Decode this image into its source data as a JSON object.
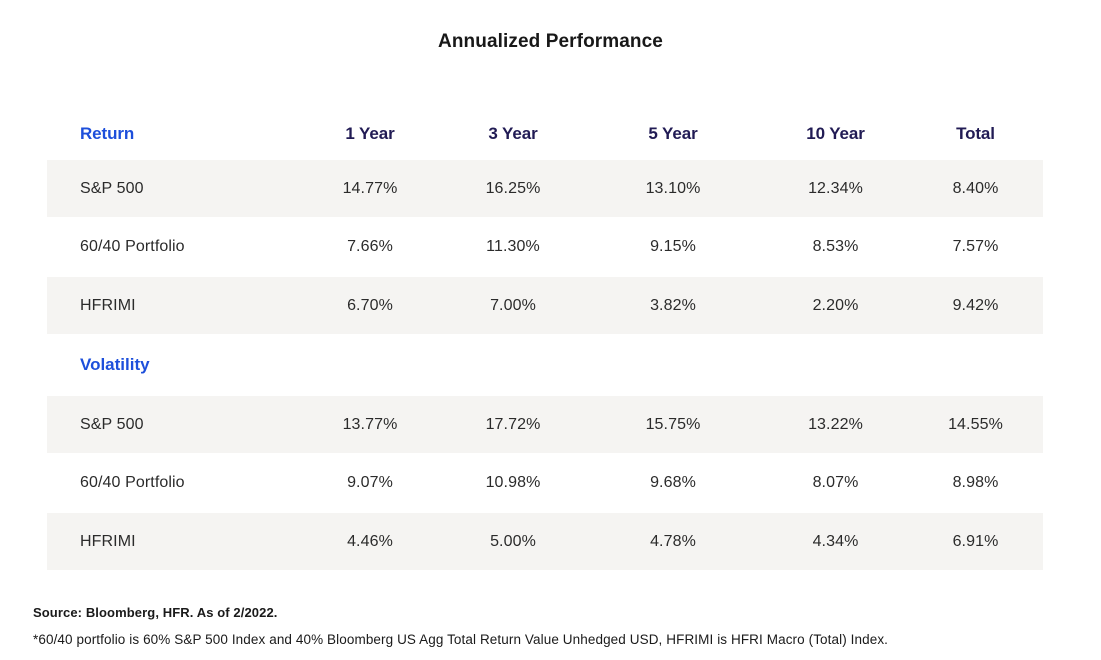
{
  "title": "Annualized Performance",
  "chart_data": {
    "type": "table",
    "title": "Annualized Performance",
    "columns": [
      "1 Year",
      "3 Year",
      "5 Year",
      "10 Year",
      "Total"
    ],
    "sections": [
      {
        "label": "Return",
        "rows": [
          {
            "label": "S&P 500",
            "values": [
              "14.77%",
              "16.25%",
              "13.10%",
              "12.34%",
              "8.40%"
            ]
          },
          {
            "label": "60/40 Portfolio",
            "values": [
              "7.66%",
              "11.30%",
              "9.15%",
              "8.53%",
              "7.57%"
            ]
          },
          {
            "label": "HFRIMI",
            "values": [
              "6.70%",
              "7.00%",
              "3.82%",
              "2.20%",
              "9.42%"
            ]
          }
        ]
      },
      {
        "label": "Volatility",
        "rows": [
          {
            "label": "S&P 500",
            "values": [
              "13.77%",
              "17.72%",
              "15.75%",
              "13.22%",
              "14.55%"
            ]
          },
          {
            "label": "60/40 Portfolio",
            "values": [
              "9.07%",
              "10.98%",
              "9.68%",
              "8.07%",
              "8.98%"
            ]
          },
          {
            "label": "HFRIMI",
            "values": [
              "4.46%",
              "5.00%",
              "4.78%",
              "4.34%",
              "6.91%"
            ]
          }
        ]
      }
    ]
  },
  "footer": {
    "source": "Source: Bloomberg, HFR. As of 2/2022.",
    "footnote": "*60/40 portfolio is 60% S&P 500 Index and 40% Bloomberg US Agg Total Return Value Unhedged USD, HFRIMI is HFRI Macro (Total) Index."
  },
  "colors": {
    "accent_blue": "#1d4fdb",
    "header_navy": "#211b54",
    "row_stripe": "#f5f4f2",
    "body_text": "#2b2b2b"
  }
}
